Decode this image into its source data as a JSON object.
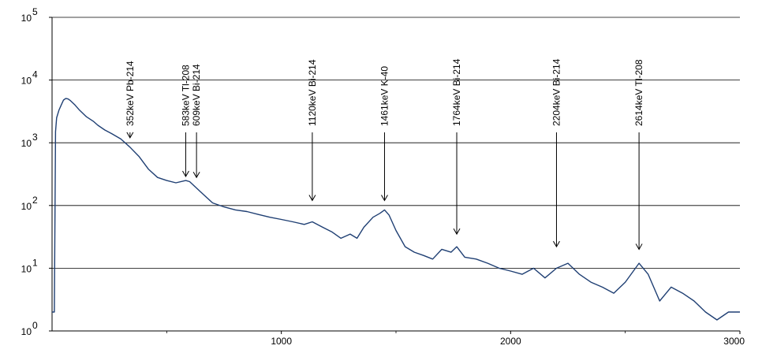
{
  "chart_data": {
    "type": "line",
    "title": "",
    "xlabel": "",
    "ylabel": "",
    "xlim": [
      0,
      3000
    ],
    "ylim": [
      1,
      100000
    ],
    "yscale": "log",
    "grid": "horizontal",
    "line_color": "#1f3f73",
    "x_ticks": [
      {
        "value": 1000,
        "label": "1000"
      },
      {
        "value": 2000,
        "label": "2000"
      },
      {
        "value": 3000,
        "label": "3000"
      }
    ],
    "y_ticks": [
      {
        "value": 1,
        "base": "10",
        "exp": "0"
      },
      {
        "value": 10,
        "base": "10",
        "exp": "1"
      },
      {
        "value": 100,
        "base": "10",
        "exp": "2"
      },
      {
        "value": 1000,
        "base": "10",
        "exp": "3"
      },
      {
        "value": 10000,
        "base": "10",
        "exp": "4"
      },
      {
        "value": 100000,
        "base": "10",
        "exp": "5"
      }
    ],
    "annotations": [
      {
        "label": "352keV Pb-214",
        "energy": 340,
        "arrow_to": 1200
      },
      {
        "label": "583keV Tl-208",
        "energy": 583,
        "arrow_to": 290
      },
      {
        "label": "609keV Bi-214",
        "energy": 630,
        "arrow_to": 280
      },
      {
        "label": "1120keV  Bi-214",
        "energy": 1135,
        "arrow_to": 120
      },
      {
        "label": "1461keV K-40",
        "energy": 1450,
        "arrow_to": 120
      },
      {
        "label": "1764keV Bi-214",
        "energy": 1765,
        "arrow_to": 35
      },
      {
        "label": "2204keV Bi-214",
        "energy": 2200,
        "arrow_to": 22
      },
      {
        "label": "2614keV Tl-208",
        "energy": 2560,
        "arrow_to": 20
      }
    ],
    "series": [
      {
        "x": [
          0,
          5,
          10,
          15,
          20,
          30,
          40,
          50,
          60,
          70,
          80,
          100,
          120,
          150,
          180,
          200,
          230,
          260,
          300,
          340,
          380,
          420,
          460,
          500,
          540,
          583,
          600,
          630,
          660,
          700,
          750,
          800,
          850,
          900,
          950,
          1000,
          1050,
          1100,
          1135,
          1180,
          1220,
          1260,
          1300,
          1330,
          1360,
          1400,
          1430,
          1450,
          1470,
          1500,
          1540,
          1580,
          1620,
          1660,
          1700,
          1740,
          1765,
          1800,
          1850,
          1900,
          1950,
          2000,
          2050,
          2100,
          2150,
          2200,
          2250,
          2300,
          2350,
          2400,
          2450,
          2500,
          2560,
          2600,
          2650,
          2700,
          2750,
          2800,
          2850,
          2900,
          2950,
          3000
        ],
        "values": [
          2,
          2,
          2,
          1500,
          2500,
          3300,
          4000,
          4800,
          5100,
          5000,
          4700,
          4000,
          3300,
          2600,
          2200,
          1900,
          1600,
          1400,
          1150,
          850,
          600,
          380,
          280,
          250,
          230,
          250,
          240,
          190,
          150,
          110,
          95,
          85,
          80,
          72,
          65,
          60,
          55,
          50,
          55,
          45,
          38,
          30,
          35,
          30,
          45,
          65,
          75,
          85,
          70,
          40,
          22,
          18,
          16,
          14,
          20,
          18,
          22,
          15,
          14,
          12,
          10,
          9,
          8,
          10,
          7,
          10,
          12,
          8,
          6,
          5,
          4,
          6,
          12,
          8,
          3,
          5,
          4,
          3,
          2,
          1.5,
          2,
          2
        ]
      }
    ]
  }
}
